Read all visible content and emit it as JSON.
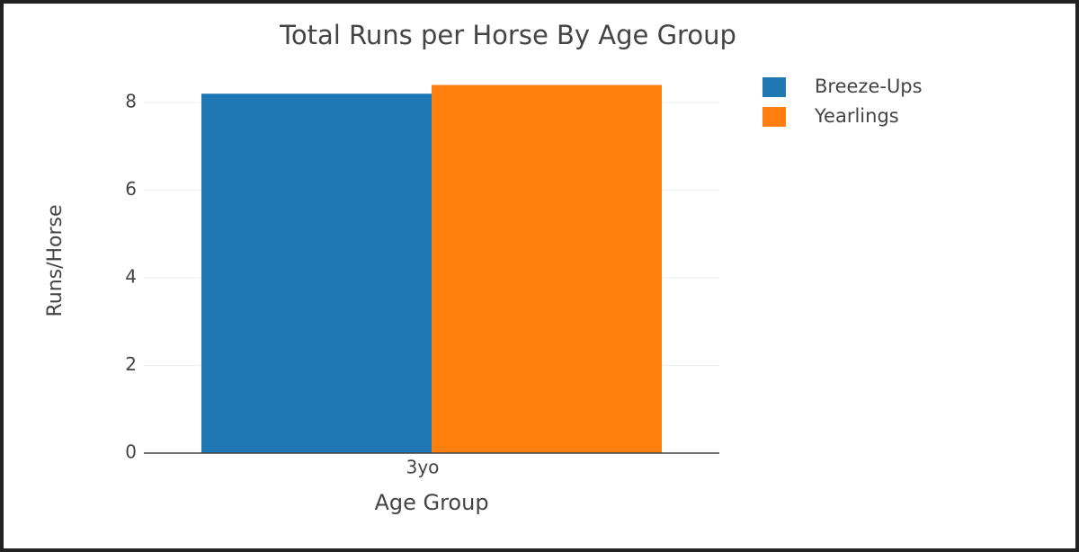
{
  "chart_data": {
    "type": "bar",
    "title": "Total Runs per Horse By Age Group",
    "x_label": "Age Group",
    "y_label": "Runs/Horse",
    "categories": [
      "3yo"
    ],
    "series": [
      {
        "name": "Breeze-Ups",
        "color": "#1f77b4",
        "values": [
          8.2
        ]
      },
      {
        "name": "Yearlings",
        "color": "#ff7f0e",
        "values": [
          8.4
        ]
      }
    ],
    "ylim": [
      0,
      8.5
    ],
    "yticks": [
      0,
      2,
      4,
      6,
      8
    ],
    "grid": true,
    "legend": "right"
  }
}
